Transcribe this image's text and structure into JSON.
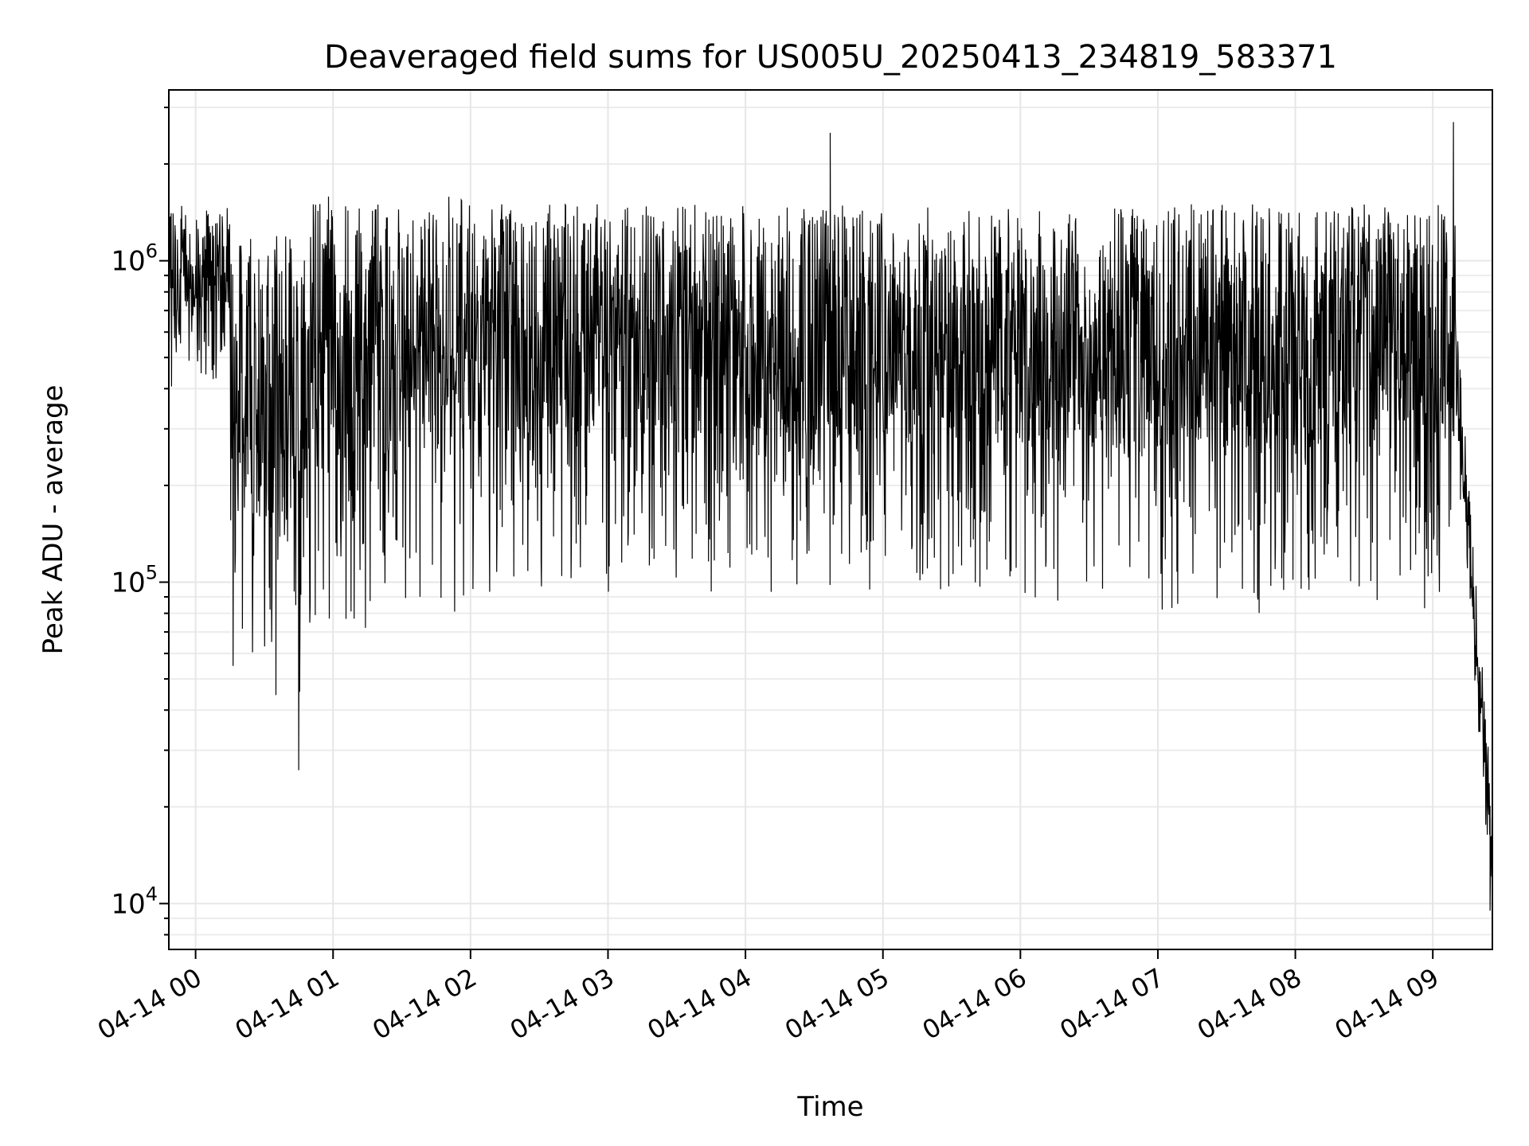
{
  "chart_data": {
    "type": "line",
    "title": "Deaveraged field sums for US005U_20250413_234819_583371",
    "xlabel": "Time",
    "ylabel": "Peak ADU - average",
    "yscale": "log",
    "ylim": [
      7200,
      3400000
    ],
    "xlim": [
      "2025-04-13 23:48:19",
      "2025-04-14 09:26:00"
    ],
    "grid": true,
    "line_color": "#000000",
    "x_ticks": [
      {
        "value": "2025-04-14 00:00",
        "label": "04-14 00"
      },
      {
        "value": "2025-04-14 01:00",
        "label": "04-14 01"
      },
      {
        "value": "2025-04-14 02:00",
        "label": "04-14 02"
      },
      {
        "value": "2025-04-14 03:00",
        "label": "04-14 03"
      },
      {
        "value": "2025-04-14 04:00",
        "label": "04-14 04"
      },
      {
        "value": "2025-04-14 05:00",
        "label": "04-14 05"
      },
      {
        "value": "2025-04-14 06:00",
        "label": "04-14 06"
      },
      {
        "value": "2025-04-14 07:00",
        "label": "04-14 07"
      },
      {
        "value": "2025-04-14 08:00",
        "label": "04-14 08"
      },
      {
        "value": "2025-04-14 09:00",
        "label": "04-14 09"
      }
    ],
    "y_ticks": [
      {
        "value": 10000,
        "base": "10",
        "exp": "4"
      },
      {
        "value": 100000,
        "base": "10",
        "exp": "5"
      },
      {
        "value": 1000000,
        "base": "10",
        "exp": "6"
      }
    ],
    "series": [
      {
        "values_by_segment": [
          {
            "time_start": "2025-04-13 23:48",
            "time_end": "2025-04-14 00:15",
            "typical_high": 1500000,
            "typical_low": 400000
          },
          {
            "time_start": "2025-04-14 00:15",
            "time_end": "2025-04-14 00:50",
            "typical_high": 1200000,
            "typical_low": 40000
          },
          {
            "time_start": "2025-04-14 00:50",
            "time_end": "2025-04-14 02:00",
            "typical_high": 1600000,
            "typical_low": 70000
          },
          {
            "time_start": "2025-04-14 02:00",
            "time_end": "2025-04-14 06:00",
            "typical_high": 1500000,
            "typical_low": 90000
          },
          {
            "time_start": "2025-04-14 06:00",
            "time_end": "2025-04-14 09:10",
            "typical_high": 1500000,
            "typical_low": 80000
          },
          {
            "time_start": "2025-04-14 09:10",
            "time_end": "2025-04-14 09:26",
            "typical_high": 800000,
            "typical_low": 10000
          }
        ],
        "extremes": [
          {
            "time": "2025-04-14 00:45",
            "value": 26000
          },
          {
            "time": "2025-04-14 04:37",
            "value": 2500000
          },
          {
            "time": "2025-04-14 09:09",
            "value": 2700000
          },
          {
            "time": "2025-04-14 09:25",
            "value": 9500
          }
        ]
      }
    ]
  }
}
